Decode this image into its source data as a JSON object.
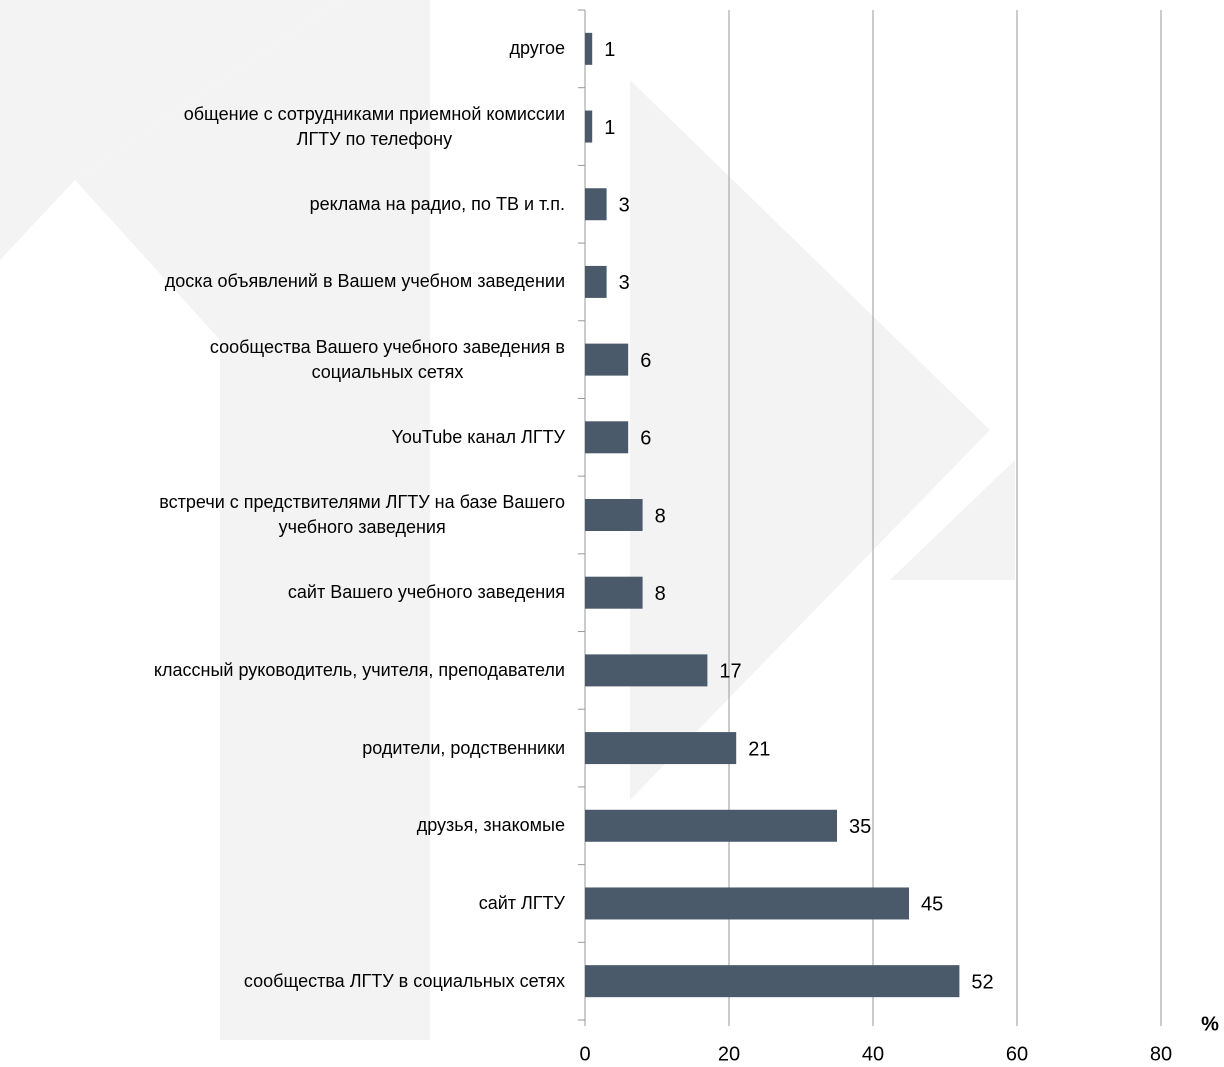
{
  "chart_data": {
    "type": "barh",
    "categories": [
      "другое",
      "общение с сотрудниками приемной комиссии\nЛГТУ по телефону",
      "реклама на радио, по ТВ и т.п.",
      "доска объявлений в Вашем учебном заведении",
      "сообщества Вашего учебного заведения в\nсоциальных сетях",
      "YouTube канал ЛГТУ",
      "встречи с предствителями ЛГТУ на базе Вашего\nучебного заведения",
      "сайт Вашего учебного заведения",
      "классный руководитель, учителя, преподаватели",
      "родители, родственники",
      "друзья, знакомые",
      "сайт ЛГТУ",
      "сообщества ЛГТУ в социальных сетях"
    ],
    "values": [
      1,
      1,
      3,
      3,
      6,
      6,
      8,
      8,
      17,
      21,
      35,
      45,
      52
    ],
    "color": "#4a5a6a",
    "xlim": [
      0,
      80
    ],
    "xticks": [
      0,
      20,
      40,
      60,
      80
    ],
    "grid": true,
    "x_label": "%"
  }
}
